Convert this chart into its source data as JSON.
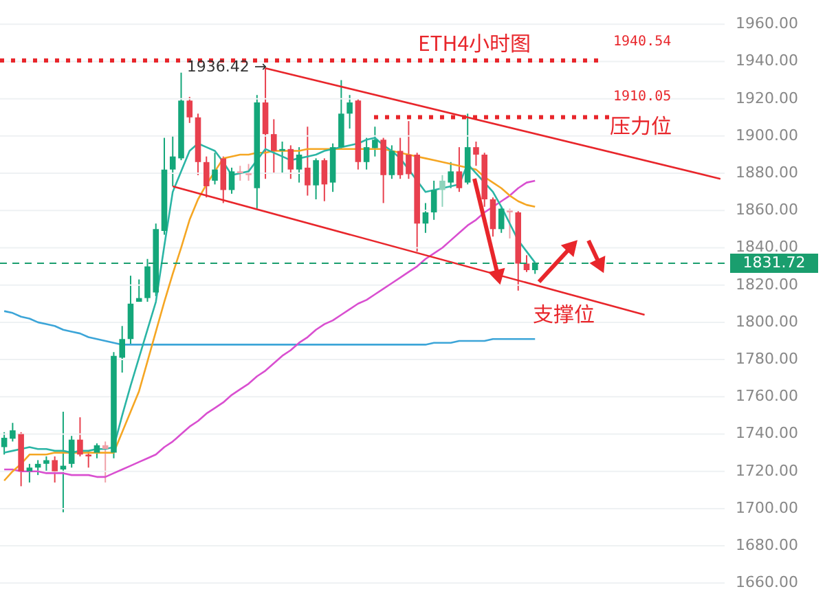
{
  "chart_data": {
    "type": "candlestick",
    "title": "ETH4小时图",
    "categories": [
      null,
      null,
      null,
      null,
      null,
      null,
      null,
      null,
      null,
      null,
      null,
      null,
      null,
      null,
      null,
      null,
      null,
      null,
      null,
      null,
      null,
      null,
      null,
      null,
      null,
      null,
      null,
      null,
      null,
      null,
      null,
      null,
      null,
      null,
      null,
      null,
      null,
      null,
      null,
      null,
      null,
      null,
      null,
      null,
      null,
      null,
      null,
      null,
      null,
      null,
      null,
      null,
      null,
      null,
      null,
      null,
      null,
      null,
      null,
      null,
      null,
      null,
      null,
      null,
      null,
      null,
      null,
      null,
      null,
      null,
      null,
      null,
      null,
      null,
      null,
      null,
      null,
      null,
      null,
      null,
      null,
      null,
      null,
      null,
      null,
      null
    ],
    "ohlc": [
      [
        1733,
        1741,
        1729,
        1738
      ],
      [
        1737.5,
        1746,
        1736,
        1742
      ],
      [
        1740,
        1741,
        1712,
        1720
      ],
      [
        1720,
        1724,
        1714,
        1722
      ],
      [
        1722,
        1726,
        1718,
        1724
      ],
      [
        1724,
        1728,
        1720,
        1726
      ],
      [
        1726,
        1728,
        1714,
        1720
      ],
      [
        1721,
        1752,
        1698,
        1723
      ],
      [
        1724,
        1739,
        1722,
        1737
      ],
      [
        1737,
        1749,
        1728,
        1729
      ],
      [
        1729,
        1731,
        1722,
        1728
      ],
      [
        1730,
        1735,
        1727,
        1734
      ],
      [
        1734,
        1736,
        1714,
        1732
      ],
      [
        1730,
        1784,
        1727,
        1782
      ],
      [
        1781,
        1798,
        1773,
        1791
      ],
      [
        1791,
        1825,
        1788,
        1810
      ],
      [
        1811,
        1823,
        1811,
        1813
      ],
      [
        1813,
        1834,
        1811,
        1830
      ],
      [
        1816,
        1853,
        1814,
        1850
      ],
      [
        1849,
        1899,
        1847,
        1882
      ],
      [
        1882,
        1900,
        1873,
        1889
      ],
      [
        1888,
        1934,
        1887,
        1919
      ],
      [
        1919,
        1921,
        1907,
        1910
      ],
      [
        1910,
        1912,
        1879,
        1886
      ],
      [
        1886,
        1889,
        1867,
        1873
      ],
      [
        1876,
        1891,
        1874,
        1882
      ],
      [
        1888,
        1889,
        1864,
        1871
      ],
      [
        1871,
        1883,
        1869,
        1881
      ],
      [
        1881,
        1884,
        1876,
        1880
      ],
      [
        1880,
        1885,
        1876,
        1879
      ],
      [
        1872,
        1922,
        1861,
        1918
      ],
      [
        1918,
        1936.42,
        1877,
        1901
      ],
      [
        1901,
        1909,
        1880,
        1892
      ],
      [
        1892,
        1897,
        1880,
        1893
      ],
      [
        1893,
        1895,
        1877,
        1882
      ],
      [
        1882,
        1894,
        1875,
        1890
      ],
      [
        1883,
        1905,
        1868,
        1873.5
      ],
      [
        1873.5,
        1888,
        1866,
        1887
      ],
      [
        1887,
        1888,
        1865,
        1874
      ],
      [
        1875,
        1896,
        1870,
        1894
      ],
      [
        1894,
        1930,
        1893,
        1912
      ],
      [
        1912,
        1922,
        1904,
        1918
      ],
      [
        1919,
        1920,
        1882,
        1886
      ],
      [
        1886,
        1899,
        1882,
        1894
      ],
      [
        1893.5,
        1905,
        1889,
        1898
      ],
      [
        1898,
        1899,
        1864,
        1879
      ],
      [
        1879,
        1895,
        1877,
        1892
      ],
      [
        1892,
        1899,
        1877,
        1879
      ],
      [
        1890,
        1908,
        1877,
        1879.5
      ],
      [
        1890,
        1891,
        1838,
        1853
      ],
      [
        1853,
        1864,
        1848,
        1859
      ],
      [
        1859,
        1876,
        1855,
        1871
      ],
      [
        1871,
        1879,
        1862,
        1876
      ],
      [
        1875,
        1886,
        1872,
        1881
      ],
      [
        1881,
        1894,
        1870,
        1872
      ],
      [
        1875,
        1912,
        1874,
        1894
      ],
      [
        1894,
        1897,
        1884,
        1890
      ],
      [
        1890,
        1891,
        1862,
        1866
      ],
      [
        1866,
        1867,
        1846,
        1850
      ],
      [
        1850,
        1862,
        1848,
        1861
      ],
      [
        1860,
        1861,
        1845,
        1859
      ],
      [
        1859,
        1860,
        1817,
        1831.5
      ],
      [
        1831.5,
        1836,
        1827,
        1828
      ],
      [
        1828,
        1832,
        1826,
        1831.72
      ],
      null,
      null,
      null,
      null,
      null,
      null,
      null,
      null,
      null,
      null,
      null,
      null,
      null,
      null,
      null,
      null,
      null,
      null,
      null,
      null,
      null,
      null
    ],
    "colors": [
      "#14a77a",
      "#14a77a",
      "#e8404e",
      "#14a77a",
      "#14a77a",
      "#14a77a",
      "#e8404e",
      "#14a77a",
      "#14a77a",
      "#e8404e",
      "#e8404e",
      "#14a77a",
      "#f0a0a8",
      "#14a77a",
      "#14a77a",
      "#14a77a",
      "#14a77a",
      "#14a77a",
      "#14a77a",
      "#14a77a",
      "#14a77a",
      "#14a77a",
      "#e8404e",
      "#e8404e",
      "#e8404e",
      "#14a77a",
      "#e8404e",
      "#14a77a",
      "#f0a0a8",
      "#f0a0a8",
      "#14a77a",
      "#e8404e",
      "#e8404e",
      "#14a77a",
      "#e8404e",
      "#14a77a",
      "#e8404e",
      "#14a77a",
      "#e8404e",
      "#14a77a",
      "#14a77a",
      "#14a77a",
      "#e8404e",
      "#14a77a",
      "#14a77a",
      "#e8404e",
      "#14a77a",
      "#e8404e",
      "#e8404e",
      "#e8404e",
      "#14a77a",
      "#14a77a",
      "#8fd3bc",
      "#14a77a",
      "#e8404e",
      "#14a77a",
      "#e8404e",
      "#e8404e",
      "#e8404e",
      "#14a77a",
      "#f0a0a8",
      "#e8404e",
      "#e8404e",
      "#14a77a",
      null,
      null,
      null,
      null,
      null,
      null,
      null,
      null,
      null,
      null,
      null,
      null,
      null,
      null,
      null,
      null,
      null,
      null,
      null,
      null,
      null,
      null
    ],
    "series": [
      {
        "type": "line",
        "color": "#3ca5d8",
        "values": [
          1806,
          1805,
          1803,
          1802,
          1800,
          1799,
          1798,
          1796,
          1795,
          1794,
          1792,
          1791,
          1790,
          1789,
          1788,
          1788,
          1788,
          1788,
          1788,
          1788,
          1788,
          1788,
          1788,
          1788,
          1788,
          1788,
          1788,
          1788,
          1788,
          1788,
          1788,
          1788,
          1788,
          1788,
          1788,
          1788,
          1788,
          1788,
          1788,
          1788,
          1788,
          1788,
          1788,
          1788,
          1788,
          1788,
          1788,
          1788,
          1788,
          1788,
          1788,
          1789,
          1789,
          1789,
          1790,
          1790,
          1790,
          1790,
          1791,
          1791,
          1791,
          1791,
          1791,
          1791,
          null,
          null,
          null,
          null,
          null,
          null,
          null,
          null,
          null,
          null,
          null,
          null,
          null,
          null,
          null,
          null,
          null,
          null,
          null,
          null,
          null,
          null
        ]
      },
      {
        "type": "line",
        "color": "#d94fd0",
        "values": [
          1721,
          1721,
          1720,
          1720,
          1720,
          1719,
          1719,
          1719,
          1718,
          1718,
          1718,
          1717,
          1717,
          1719,
          1721,
          1723,
          1725,
          1727,
          1729,
          1733,
          1736,
          1740,
          1744,
          1747,
          1751,
          1754,
          1757,
          1761,
          1764,
          1767,
          1771,
          1774,
          1778,
          1782,
          1785,
          1789,
          1792,
          1796,
          1799,
          1801,
          1804,
          1807,
          1810,
          1812,
          1815,
          1818,
          1821,
          1824,
          1827,
          1830,
          1834,
          1837,
          1840,
          1844,
          1848,
          1852,
          1855,
          1859,
          1862,
          1865,
          1868,
          1872,
          1875,
          1876,
          null,
          null,
          null,
          null,
          null,
          null,
          null,
          null,
          null,
          null,
          null,
          null,
          null,
          null,
          null,
          null,
          null,
          null,
          null,
          null,
          null,
          null
        ]
      },
      {
        "type": "line",
        "color": "#f5a623",
        "values": [
          1715,
          1720,
          1724,
          1729,
          1729,
          1729,
          1730,
          1730,
          1730,
          1730,
          1730,
          1730,
          1730,
          1730,
          1741,
          1752,
          1763,
          1779,
          1795,
          1811,
          1826,
          1840,
          1855,
          1866,
          1874,
          1881,
          1888,
          1889,
          1890,
          1890,
          1891,
          1891,
          1892,
          1892,
          1892,
          1892,
          1893,
          1893,
          1893,
          1893,
          1893,
          1893,
          1893,
          1893,
          1893,
          1893,
          1892,
          1891,
          1890,
          1889,
          1888,
          1887,
          1886,
          1885,
          1884,
          1883,
          1882,
          1878,
          1875,
          1872,
          1868,
          1865,
          1863,
          1862,
          null,
          null,
          null,
          null,
          null,
          null,
          null,
          null,
          null,
          null,
          null,
          null,
          null,
          null,
          null,
          null,
          null,
          null,
          null,
          null,
          null,
          null
        ]
      },
      {
        "type": "line",
        "color": "#2bb5a5",
        "values": [
          1730,
          1731,
          1732,
          1733,
          1732,
          1732,
          1731,
          1731,
          1730,
          1731,
          1731,
          1732,
          1732,
          1733,
          1750,
          1766,
          1781,
          1796,
          1811,
          1841,
          1870,
          1881,
          1892,
          1896,
          1894,
          1892,
          1886,
          1879,
          1880,
          1881,
          1887,
          1893,
          1891,
          1889,
          1887,
          1888,
          1889,
          1890,
          1892,
          1893,
          1894,
          1895,
          1896,
          1898,
          1899,
          1895,
          1892,
          1888,
          1882,
          1876,
          1870,
          1871,
          1872,
          1873,
          1874,
          1885,
          1880,
          1875,
          1870,
          1862,
          1853,
          1844,
          1838,
          1832,
          null,
          null,
          null,
          null,
          null,
          null,
          null,
          null,
          null,
          null,
          null,
          null,
          null,
          null,
          null,
          null,
          null,
          null,
          null,
          null,
          null,
          null
        ]
      },
      {
        "type": "line",
        "color": "#e8262b",
        "values": [
          null,
          null,
          null,
          null,
          null,
          null,
          null,
          null,
          null,
          null,
          null,
          null,
          null,
          null,
          null,
          null,
          null,
          null,
          null,
          null,
          null,
          null,
          null,
          null,
          null,
          null,
          null,
          null,
          null,
          null,
          null,
          1936.42,
          null,
          null,
          null,
          null,
          null,
          null,
          null,
          null,
          null,
          null,
          null,
          null,
          null,
          null,
          null,
          null,
          null,
          null,
          null,
          null,
          null,
          null,
          null,
          null,
          null,
          null,
          null,
          null,
          null,
          null,
          null,
          null,
          null,
          null,
          null,
          null,
          null,
          null,
          null,
          null,
          null,
          null,
          null,
          null,
          null,
          null,
          null,
          null,
          null,
          null,
          null,
          null,
          null,
          1877
        ]
      },
      {
        "type": "line",
        "color": "#e8262b",
        "values": [
          null,
          null,
          null,
          null,
          null,
          null,
          null,
          null,
          null,
          null,
          null,
          null,
          null,
          null,
          null,
          null,
          null,
          null,
          null,
          null,
          1873,
          null,
          null,
          null,
          null,
          null,
          null,
          null,
          null,
          null,
          null,
          null,
          null,
          null,
          null,
          null,
          null,
          null,
          null,
          null,
          null,
          null,
          null,
          null,
          null,
          null,
          null,
          null,
          null,
          null,
          null,
          null,
          null,
          null,
          null,
          null,
          null,
          null,
          null,
          null,
          null,
          null,
          null,
          null,
          null,
          null,
          null,
          null,
          null,
          null,
          null,
          null,
          null,
          null,
          null,
          null,
          1804,
          null,
          null,
          null,
          null,
          null,
          null,
          null,
          null,
          null
        ]
      }
    ],
    "ylim": [
      1652,
      1973
    ],
    "yticks": [
      {
        "value": 1660,
        "label": "1660.00"
      },
      {
        "value": 1680,
        "label": "1680.00"
      },
      {
        "value": 1700,
        "label": "1700.00"
      },
      {
        "value": 1720,
        "label": "1720.00"
      },
      {
        "value": 1740,
        "label": "1740.00"
      },
      {
        "value": 1760,
        "label": "1760.00"
      },
      {
        "value": 1780,
        "label": "1780.00"
      },
      {
        "value": 1800,
        "label": "1800.00"
      },
      {
        "value": 1820,
        "label": "1820.00"
      },
      {
        "value": 1840,
        "label": "1840.00"
      },
      {
        "value": 1860,
        "label": "1860.00"
      },
      {
        "value": 1880,
        "label": "1880.00"
      },
      {
        "value": 1900,
        "label": "1900.00"
      },
      {
        "value": 1920,
        "label": "1920.00"
      },
      {
        "value": 1940,
        "label": "1940.00"
      },
      {
        "value": 1960,
        "label": "1960.00"
      }
    ],
    "ref_lines": [
      {
        "axis": "y",
        "value": 1940.54,
        "label": "1940.54",
        "color": "#e8262b",
        "line_style": "dotted"
      },
      {
        "axis": "y",
        "value": 1910.05,
        "label": "1910.05",
        "color": "#e8262b",
        "line_style": "dotted"
      },
      {
        "axis": "y",
        "value": 1831.72,
        "label": "1831.72",
        "color": "#1a9e6e",
        "line_style": "dashed"
      }
    ],
    "annotations": [
      "1936.42 →",
      "压力位",
      "支撑位"
    ],
    "grid": "y"
  }
}
